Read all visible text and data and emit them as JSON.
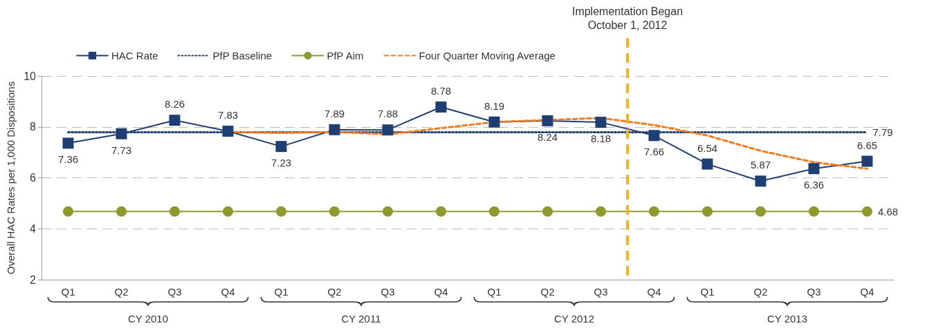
{
  "chart_data": {
    "type": "line",
    "ylabel": "Overall HAC Rates per 1,000 Dispositions",
    "categories": [
      "Q1",
      "Q2",
      "Q3",
      "Q4",
      "Q1",
      "Q2",
      "Q3",
      "Q4",
      "Q1",
      "Q2",
      "Q3",
      "Q4",
      "Q1",
      "Q2",
      "Q3",
      "Q4"
    ],
    "ylim": [
      2,
      10
    ],
    "yticks": [
      2,
      4,
      6,
      8,
      10
    ],
    "grid": "y",
    "legend": "top left",
    "series": [
      {
        "name": "HAC Rate",
        "color": "#1f3f73",
        "marker": "square",
        "line_style": "solid",
        "values": [
          7.36,
          7.73,
          8.26,
          7.83,
          7.23,
          7.89,
          7.88,
          8.78,
          8.19,
          8.24,
          8.18,
          7.66,
          6.54,
          5.87,
          6.36,
          6.65
        ],
        "value_labels": [
          "7.36",
          "7.73",
          "8.26",
          "7.83",
          "7.23",
          "7.89",
          "7.88",
          "8.78",
          "8.19",
          "8.24",
          "8.18",
          "7.66",
          "6.54",
          "5.87",
          "6.36",
          "6.65"
        ]
      },
      {
        "name": "PfP Baseline",
        "color": "#1f3f73",
        "marker": "none",
        "line_style": "dotted",
        "values": [
          7.79,
          7.79,
          7.79,
          7.79,
          7.79,
          7.79,
          7.79,
          7.79,
          7.79,
          7.79,
          7.79,
          7.79,
          7.79,
          7.79,
          7.79,
          7.79
        ],
        "value_labels": [
          null,
          null,
          null,
          null,
          null,
          null,
          null,
          null,
          null,
          null,
          null,
          null,
          null,
          null,
          null,
          "7.79"
        ]
      },
      {
        "name": "PfP Aim",
        "color": "#8c9a2e",
        "marker": "circle",
        "line_style": "solid",
        "values": [
          4.68,
          4.68,
          4.68,
          4.68,
          4.68,
          4.68,
          4.68,
          4.68,
          4.68,
          4.68,
          4.68,
          4.68,
          4.68,
          4.68,
          4.68,
          4.68
        ],
        "value_labels": [
          null,
          null,
          null,
          null,
          null,
          null,
          null,
          null,
          null,
          null,
          null,
          null,
          null,
          null,
          null,
          "4.68"
        ]
      },
      {
        "name": "Four Quarter Moving Average",
        "color": "#f47b20",
        "marker": "none",
        "line_style": "dashed",
        "values": [
          null,
          null,
          null,
          7.8,
          7.76,
          7.8,
          7.71,
          7.95,
          8.19,
          8.27,
          8.35,
          8.07,
          7.66,
          7.06,
          6.61,
          6.36
        ]
      }
    ],
    "annotations": [
      "CY 2010",
      "CY 2011",
      "CY 2012",
      "CY 2013",
      "Implementation Began\nOctober 1, 2012"
    ]
  }
}
